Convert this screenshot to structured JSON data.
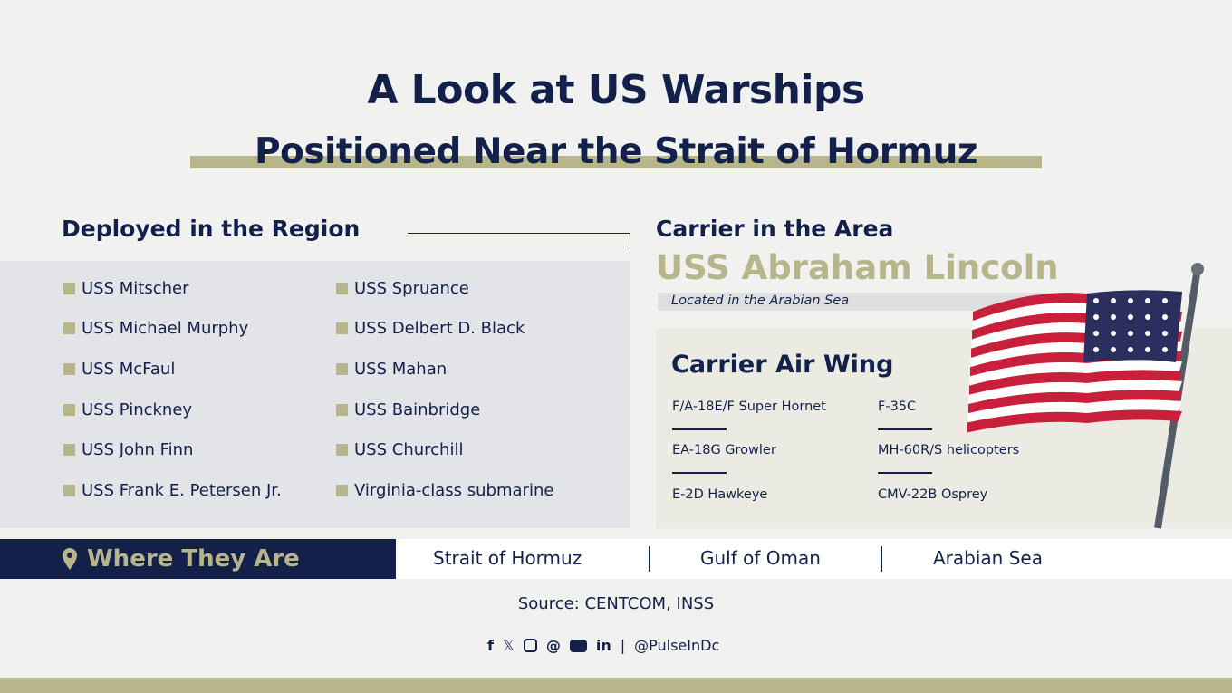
{
  "title": {
    "line1": "A Look at US Warships",
    "line2": "Positioned Near the Strait of Hormuz"
  },
  "deployed": {
    "heading": "Deployed in the Region",
    "col1": [
      "USS Mitscher",
      "USS Michael Murphy",
      "USS McFaul",
      "USS Pinckney",
      "USS John Finn",
      "USS Frank E. Petersen Jr."
    ],
    "col2": [
      "USS Spruance",
      "USS Delbert D. Black",
      "USS Mahan",
      "USS Bainbridge",
      "USS Churchill",
      "Virginia-class submarine"
    ]
  },
  "carrier": {
    "heading": "Carrier in the Area",
    "name": "USS Abraham Lincoln",
    "location": "Located in the Arabian Sea"
  },
  "air_wing": {
    "heading": "Carrier Air Wing",
    "col1": [
      "F/A-18E/F Super Hornet",
      "EA-18G Growler",
      "E-2D Hawkeye"
    ],
    "col2": [
      "F-35C",
      "MH-60R/S helicopters",
      "CMV-22B Osprey"
    ]
  },
  "where": {
    "label": "Where They Are",
    "icon": "map-pin-icon",
    "locations": [
      "Strait of Hormuz",
      "Gulf of Oman",
      "Arabian Sea"
    ]
  },
  "source": "Source: CENTCOM, INSS",
  "social": {
    "icons": [
      "facebook-icon",
      "x-icon",
      "instagram-icon",
      "threads-icon",
      "youtube-icon",
      "linkedin-icon"
    ],
    "handle": "@PulseInDc"
  },
  "colors": {
    "navy": "#13214a",
    "khaki": "#b7b58c"
  }
}
